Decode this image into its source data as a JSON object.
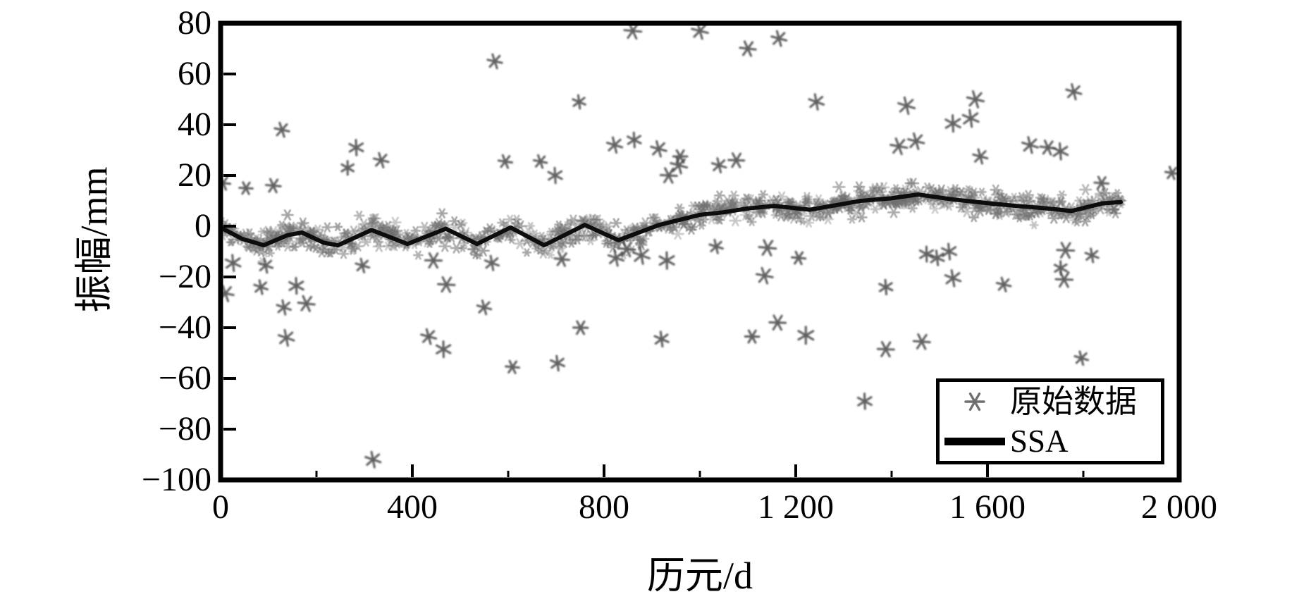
{
  "figure": {
    "background": "#ffffff",
    "axis_color": "#000000",
    "scatter_color": "#6f6f6f",
    "outlier_color": "#3f3f3f",
    "line_color": "#0d0d0d"
  },
  "legend": {
    "position": "lower-right",
    "items": [
      {
        "marker": "asterisk",
        "label": "原始数据"
      },
      {
        "marker": "line",
        "label": "SSA"
      }
    ]
  },
  "chart_data": {
    "type": "scatter",
    "title": "",
    "xlabel": "历元/d",
    "ylabel": "振幅/mm",
    "xlim": [
      0,
      2000
    ],
    "ylim": [
      -100,
      80
    ],
    "grid": false,
    "legend_position": "lower right",
    "x_major_ticks": [
      0,
      400,
      800,
      1200,
      1600,
      2000
    ],
    "x_tick_labels": [
      "0",
      "400",
      "800",
      "1 200",
      "1 600",
      "2 000"
    ],
    "x_minor_ticks": [
      200,
      600,
      1000,
      1400,
      1800
    ],
    "y_major_ticks": [
      80,
      60,
      40,
      20,
      0,
      -20,
      -40,
      -60,
      -80,
      -100
    ],
    "y_tick_labels": [
      "80",
      "60",
      "40",
      "20",
      "0",
      "−20",
      "−40",
      "−60",
      "−80",
      "−100"
    ],
    "series": [
      {
        "name": "原始数据",
        "kind": "scatter",
        "marker": "asterisk",
        "color": "#6f6f6f",
        "dense_band": {
          "comment": "dense noisy cloud of asterisks hugging the SSA curve",
          "follows": "SSA",
          "epoch_range": [
            0,
            1880
          ],
          "halfwidth_mm": 8,
          "point_count": 950,
          "seed": 42
        },
        "outliers": [
          [
            860,
            77
          ],
          [
            1000,
            77
          ],
          [
            572,
            65
          ],
          [
            1100,
            70
          ],
          [
            1165,
            74
          ],
          [
            128,
            38
          ],
          [
            110,
            16
          ],
          [
            5,
            17
          ],
          [
            53,
            15
          ],
          [
            265,
            23
          ],
          [
            335,
            26
          ],
          [
            283,
            31
          ],
          [
            594,
            25.5
          ],
          [
            667,
            25.5
          ],
          [
            698,
            20
          ],
          [
            822,
            32
          ],
          [
            863,
            34
          ],
          [
            914,
            30.5
          ],
          [
            935,
            20
          ],
          [
            748,
            49
          ],
          [
            1243,
            49
          ],
          [
            1431,
            47.5
          ],
          [
            1575,
            50
          ],
          [
            1780,
            53
          ],
          [
            1528,
            40.5
          ],
          [
            1565,
            42.5
          ],
          [
            1451,
            33.5
          ],
          [
            1415,
            31.5
          ],
          [
            1689,
            32
          ],
          [
            1726,
            31
          ],
          [
            1752,
            29.5
          ],
          [
            1585,
            27.5
          ],
          [
            956,
            24
          ],
          [
            1040,
            24
          ],
          [
            1076,
            26
          ],
          [
            959,
            27.5
          ],
          [
            1838,
            17
          ],
          [
            1985,
            21
          ],
          [
            26,
            -14.5
          ],
          [
            94,
            -15.5
          ],
          [
            296,
            -15.5
          ],
          [
            444,
            -13.5
          ],
          [
            566,
            -14.5
          ],
          [
            712,
            -13
          ],
          [
            825,
            -12.5
          ],
          [
            878,
            -11.5
          ],
          [
            931,
            -13.5
          ],
          [
            10,
            -26.5
          ],
          [
            84,
            -24
          ],
          [
            158,
            -23.5
          ],
          [
            471,
            -23
          ],
          [
            132,
            -32
          ],
          [
            179,
            -30.5
          ],
          [
            550,
            -32
          ],
          [
            751,
            -40
          ],
          [
            137,
            -44
          ],
          [
            434,
            -43.5
          ],
          [
            465,
            -48.5
          ],
          [
            609,
            -55.5
          ],
          [
            703,
            -54
          ],
          [
            920,
            -44.5
          ],
          [
            318,
            -92
          ],
          [
            1034,
            -8
          ],
          [
            847,
            -9
          ],
          [
            1141,
            -8.5
          ],
          [
            1206,
            -12.5
          ],
          [
            1135,
            -19.5
          ],
          [
            1473,
            -11
          ],
          [
            1495,
            -12.5
          ],
          [
            1520,
            -10
          ],
          [
            1528,
            -20.5
          ],
          [
            1388,
            -24
          ],
          [
            1634,
            -23
          ],
          [
            1763,
            -9.5
          ],
          [
            1818,
            -11.5
          ],
          [
            1753,
            -16.5
          ],
          [
            1760,
            -21
          ],
          [
            1162,
            -38
          ],
          [
            1109,
            -43.5
          ],
          [
            1221,
            -43
          ],
          [
            1388,
            -48.5
          ],
          [
            1463,
            -45.5
          ],
          [
            1796,
            -52
          ],
          [
            1344,
            -69
          ]
        ]
      },
      {
        "name": "SSA",
        "kind": "line",
        "color": "#0d0d0d",
        "points": [
          [
            0,
            -0.5
          ],
          [
            45,
            -5
          ],
          [
            90,
            -7.5
          ],
          [
            140,
            -3.5
          ],
          [
            170,
            -2.5
          ],
          [
            215,
            -6.5
          ],
          [
            245,
            -7.5
          ],
          [
            315,
            -1.5
          ],
          [
            390,
            -7
          ],
          [
            470,
            -1
          ],
          [
            535,
            -7
          ],
          [
            605,
            -0.5
          ],
          [
            675,
            -7.5
          ],
          [
            760,
            0.5
          ],
          [
            830,
            -5.5
          ],
          [
            915,
            0.5
          ],
          [
            1000,
            4.5
          ],
          [
            1050,
            5.5
          ],
          [
            1100,
            7
          ],
          [
            1155,
            8
          ],
          [
            1230,
            6.5
          ],
          [
            1290,
            8.5
          ],
          [
            1335,
            10
          ],
          [
            1400,
            11
          ],
          [
            1455,
            12.5
          ],
          [
            1530,
            10.5
          ],
          [
            1605,
            9
          ],
          [
            1660,
            8
          ],
          [
            1725,
            7
          ],
          [
            1775,
            6
          ],
          [
            1840,
            9
          ],
          [
            1878,
            9.5
          ]
        ]
      }
    ]
  }
}
